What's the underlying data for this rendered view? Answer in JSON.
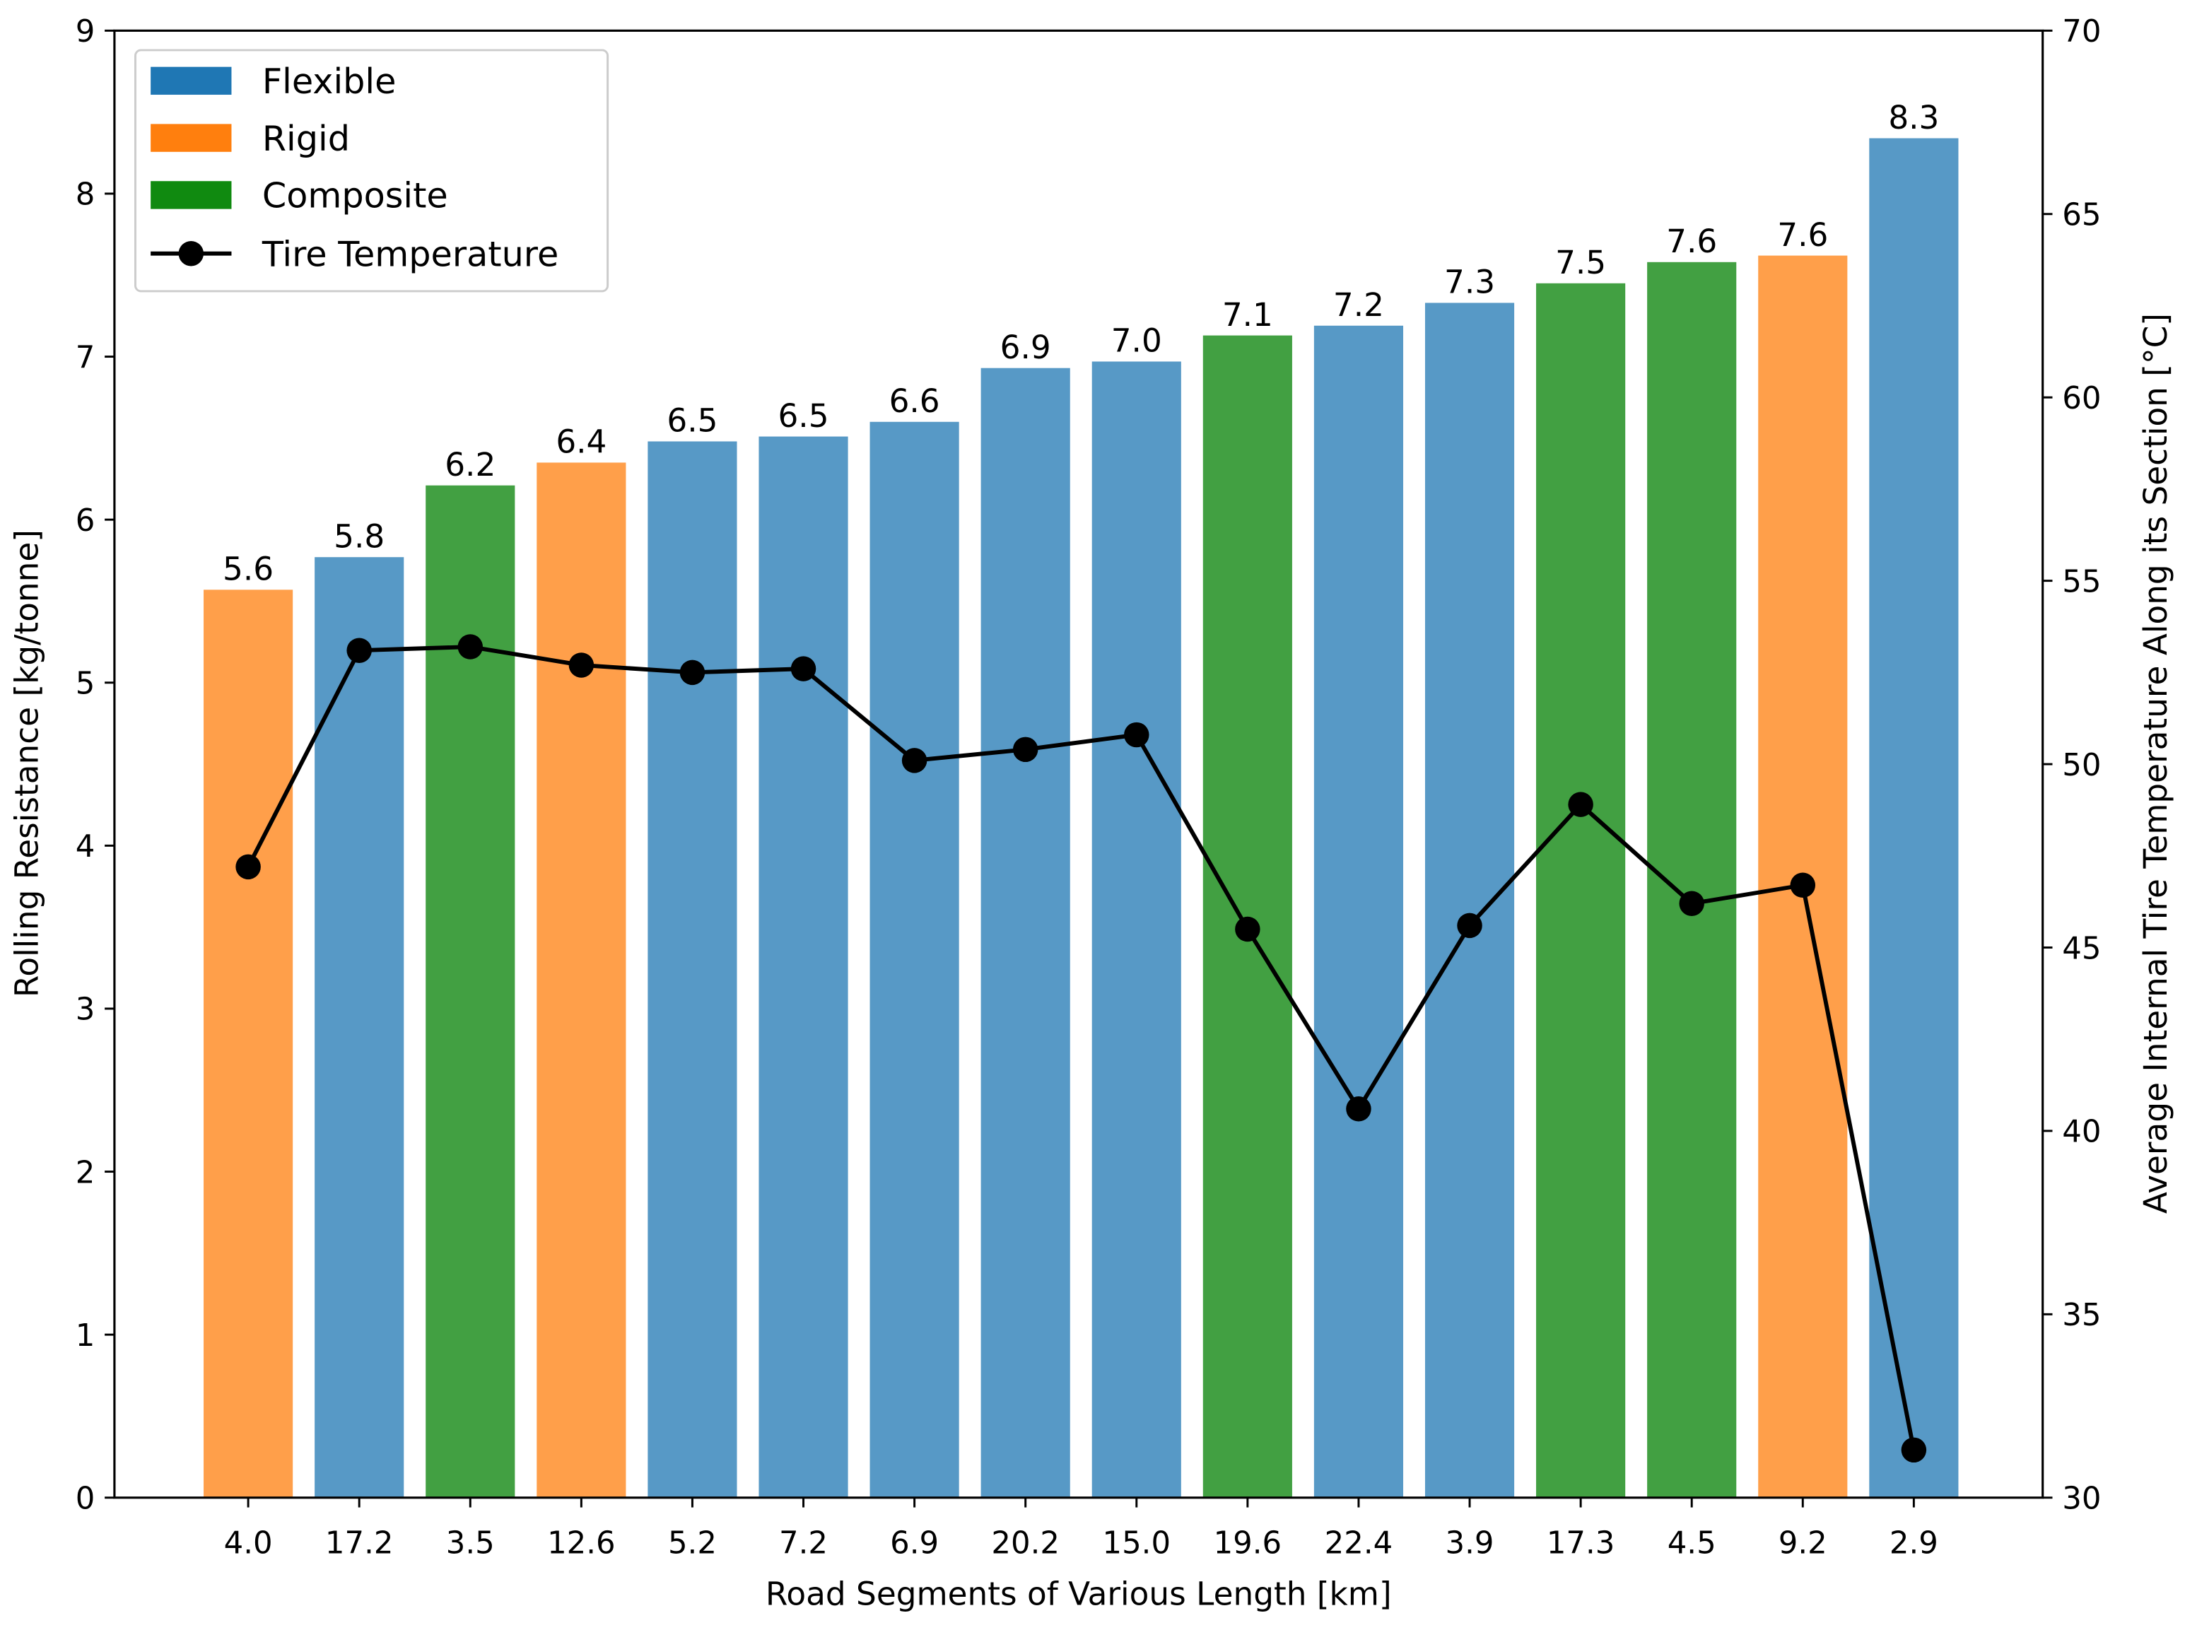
{
  "chart_data": {
    "type": "bar",
    "title": "",
    "xlabel": "Road Segments of Various Length [km]",
    "ylabel": "Rolling Resistance [kg/tonne]",
    "y2label": "Average Internal Tire Temperature Along its Section [°C]",
    "ylim": [
      0,
      9
    ],
    "y2lim": [
      30,
      70
    ],
    "yticks": [
      0,
      1,
      2,
      3,
      4,
      5,
      6,
      7,
      8,
      9
    ],
    "y2ticks": [
      30,
      35,
      40,
      45,
      50,
      55,
      60,
      65,
      70
    ],
    "categories": [
      "4.0",
      "17.2",
      "3.5",
      "12.6",
      "5.2",
      "7.2",
      "6.9",
      "20.2",
      "15.0",
      "19.6",
      "22.4",
      "3.9",
      "17.3",
      "4.5",
      "9.2",
      "2.9"
    ],
    "pavement_types": [
      "Rigid",
      "Flexible",
      "Composite",
      "Rigid",
      "Flexible",
      "Flexible",
      "Flexible",
      "Flexible",
      "Flexible",
      "Composite",
      "Flexible",
      "Flexible",
      "Composite",
      "Composite",
      "Rigid",
      "Flexible"
    ],
    "series": [
      {
        "name": "Rolling Resistance",
        "axis": "left",
        "kind": "bar",
        "values": [
          5.57,
          5.77,
          6.21,
          6.35,
          6.48,
          6.51,
          6.6,
          6.93,
          6.97,
          7.13,
          7.19,
          7.33,
          7.45,
          7.58,
          7.62,
          8.34
        ],
        "labels": [
          "5.6",
          "5.8",
          "6.2",
          "6.4",
          "6.5",
          "6.5",
          "6.6",
          "6.9",
          "7.0",
          "7.1",
          "7.2",
          "7.3",
          "7.5",
          "7.6",
          "7.6",
          "8.3"
        ]
      },
      {
        "name": "Tire Temperature",
        "axis": "right",
        "kind": "line",
        "values": [
          47.2,
          53.1,
          53.2,
          52.7,
          52.5,
          52.6,
          50.1,
          50.4,
          50.8,
          45.5,
          40.6,
          45.6,
          48.9,
          46.2,
          46.7,
          31.3
        ]
      }
    ],
    "legend": {
      "placement": "top-left",
      "entries": [
        {
          "label": "Flexible",
          "color": "#1f77b4"
        },
        {
          "label": "Rigid",
          "color": "#ff7f0e"
        },
        {
          "label": "Composite",
          "color": "#108a10"
        },
        {
          "label": "Tire Temperature",
          "color": "#000000"
        }
      ]
    },
    "colors": {
      "Flexible": "#5799c6",
      "Rigid": "#ff9f4a",
      "Composite": "#42a042"
    },
    "grid": false
  }
}
